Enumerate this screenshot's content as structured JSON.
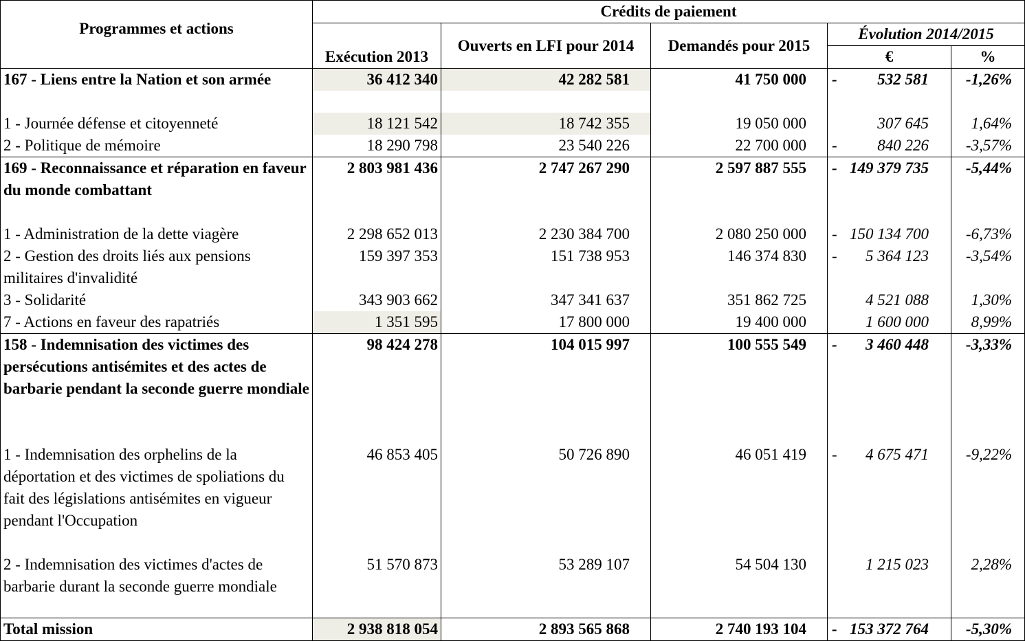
{
  "header": {
    "programmes": "Programmes et actions",
    "credits": "Crédits de paiement",
    "exec2013": "Exécution 2013",
    "lfi2014": "Ouverts en LFI pour 2014",
    "dem2015": "Demandés pour 2015",
    "evolution": "Évolution 2014/2015",
    "eur": "€",
    "pct": "%"
  },
  "rows": [
    {
      "label": "167 - Liens entre la Nation et son armée",
      "exec": "36 412 340",
      "lfi": "42 282 581",
      "dem": "41 750 000",
      "sign": "-",
      "eur": "532 581",
      "pct": "-1,26%"
    },
    {
      "label": "1 - Journée défense et citoyenneté",
      "exec": "18 121 542",
      "lfi": "18 742 355",
      "dem": "19 050 000",
      "sign": "",
      "eur": "307 645",
      "pct": "1,64%"
    },
    {
      "label": "2 - Politique de mémoire",
      "exec": "18 290 798",
      "lfi": "23 540 226",
      "dem": "22 700 000",
      "sign": "-",
      "eur": "840 226",
      "pct": "-3,57%"
    },
    {
      "label": "169 - Reconnaissance et réparation en faveur du monde combattant",
      "exec": "2 803 981 436",
      "lfi": "2 747 267 290",
      "dem": "2 597 887 555",
      "sign": "-",
      "eur": "149 379 735",
      "pct": "-5,44%"
    },
    {
      "label": "1 -  Administration de la dette viagère",
      "exec": "2 298 652 013",
      "lfi": "2 230 384 700",
      "dem": "2 080 250 000",
      "sign": "-",
      "eur": "150 134 700",
      "pct": "-6,73%"
    },
    {
      "label": "2 -  Gestion des droits liés aux pensions militaires d'invalidité",
      "exec": "159 397 353",
      "lfi": "151 738 953",
      "dem": "146 374 830",
      "sign": "-",
      "eur": "5 364 123",
      "pct": "-3,54%"
    },
    {
      "label": "3 - Solidarité",
      "exec": "343 903 662",
      "lfi": "347 341 637",
      "dem": "351 862 725",
      "sign": "",
      "eur": "4 521 088",
      "pct": "1,30%"
    },
    {
      "label": "7 - Actions en faveur des rapatriés",
      "exec": "1 351 595",
      "lfi": "17 800 000",
      "dem": "19 400 000",
      "sign": "",
      "eur": "1 600 000",
      "pct": "8,99%"
    },
    {
      "label": "158 - Indemnisation des victimes des persécutions antisémites et des actes de barbarie pendant la seconde guerre mondiale",
      "exec": "98 424 278",
      "lfi": "104 015 997",
      "dem": "100 555 549",
      "sign": "-",
      "eur": "3 460 448",
      "pct": "-3,33%"
    },
    {
      "label": "1 - Indemnisation des orphelins de la déportation et des victimes de spoliations du fait des législations antisémites en vigueur pendant l'Occupation",
      "exec": "46 853 405",
      "lfi": "50 726 890",
      "dem": "46 051 419",
      "sign": "-",
      "eur": "4 675 471",
      "pct": "-9,22%"
    },
    {
      "label": "2 - Indemnisation des victimes d'actes de barbarie durant la seconde guerre mondiale",
      "exec": "51 570 873",
      "lfi": "53 289 107",
      "dem": "54 504 130",
      "sign": "",
      "eur": "1 215 023",
      "pct": "2,28%"
    },
    {
      "label": "Total mission",
      "exec": "2 938 818 054",
      "lfi": "2 893 565 868",
      "dem": "2 740 193 104",
      "sign": "-",
      "eur": "153 372 764",
      "pct": "-5,30%"
    }
  ]
}
